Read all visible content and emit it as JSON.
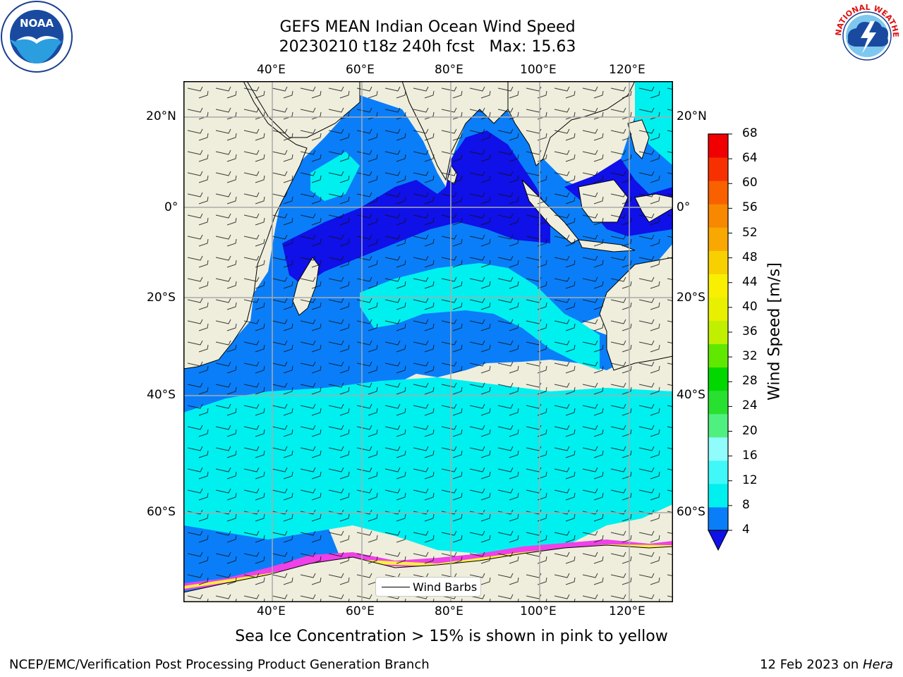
{
  "header": {
    "title_line1": "GEFS MEAN Indian Ocean Wind Speed",
    "title_line2": "20230210 t18z 240h fcst   Max: 15.63"
  },
  "logos": {
    "left": {
      "text": "NOAA",
      "icon": "noaa-logo-icon"
    },
    "right": {
      "text": "NATIONAL WEATHER SERVICE",
      "icon": "nws-logo-icon"
    }
  },
  "map": {
    "top_lon_labels": [
      "40°E",
      "60°E",
      "80°E",
      "100°E",
      "120°E"
    ],
    "bottom_lon_labels": [
      "40°E",
      "60°E",
      "80°E",
      "100°E",
      "120°E"
    ],
    "left_lat_labels": [
      "20°N",
      "0°",
      "20°S",
      "40°S",
      "60°S"
    ],
    "right_lat_labels": [
      "20°N",
      "0°",
      "20°S",
      "40°S",
      "60°S"
    ],
    "colors": {
      "land": "#efeedc",
      "ocean_4_8": "#0a7ef8",
      "ocean_lt4": "#1010e8",
      "ocean_8_12": "#00f0f0",
      "ice_pink": "#f040e8",
      "ice_yellow": "#f8f040"
    }
  },
  "legend": {
    "label": "Wind Barbs"
  },
  "colorbar": {
    "label": "Wind Speed [m/s]",
    "ticks": [
      "4",
      "8",
      "12",
      "16",
      "20",
      "24",
      "28",
      "32",
      "36",
      "40",
      "44",
      "48",
      "52",
      "56",
      "60",
      "64",
      "68"
    ],
    "colors": [
      "#0a7ef8",
      "#00f0f0",
      "#40f8f8",
      "#90fcfc",
      "#50f080",
      "#28e030",
      "#00d800",
      "#60e800",
      "#c0f000",
      "#e8f000",
      "#f8f000",
      "#f8d000",
      "#f8a800",
      "#f88800",
      "#f86000",
      "#f83000",
      "#f00000"
    ],
    "under_color": "#1010e8"
  },
  "subtitle": "Sea Ice Concentration > 15% is shown in pink to yellow",
  "footer": {
    "left": "NCEP/EMC/Verification Post Processing Product Generation Branch",
    "right_date": "12 Feb 2023 on ",
    "right_host": "Hera"
  }
}
